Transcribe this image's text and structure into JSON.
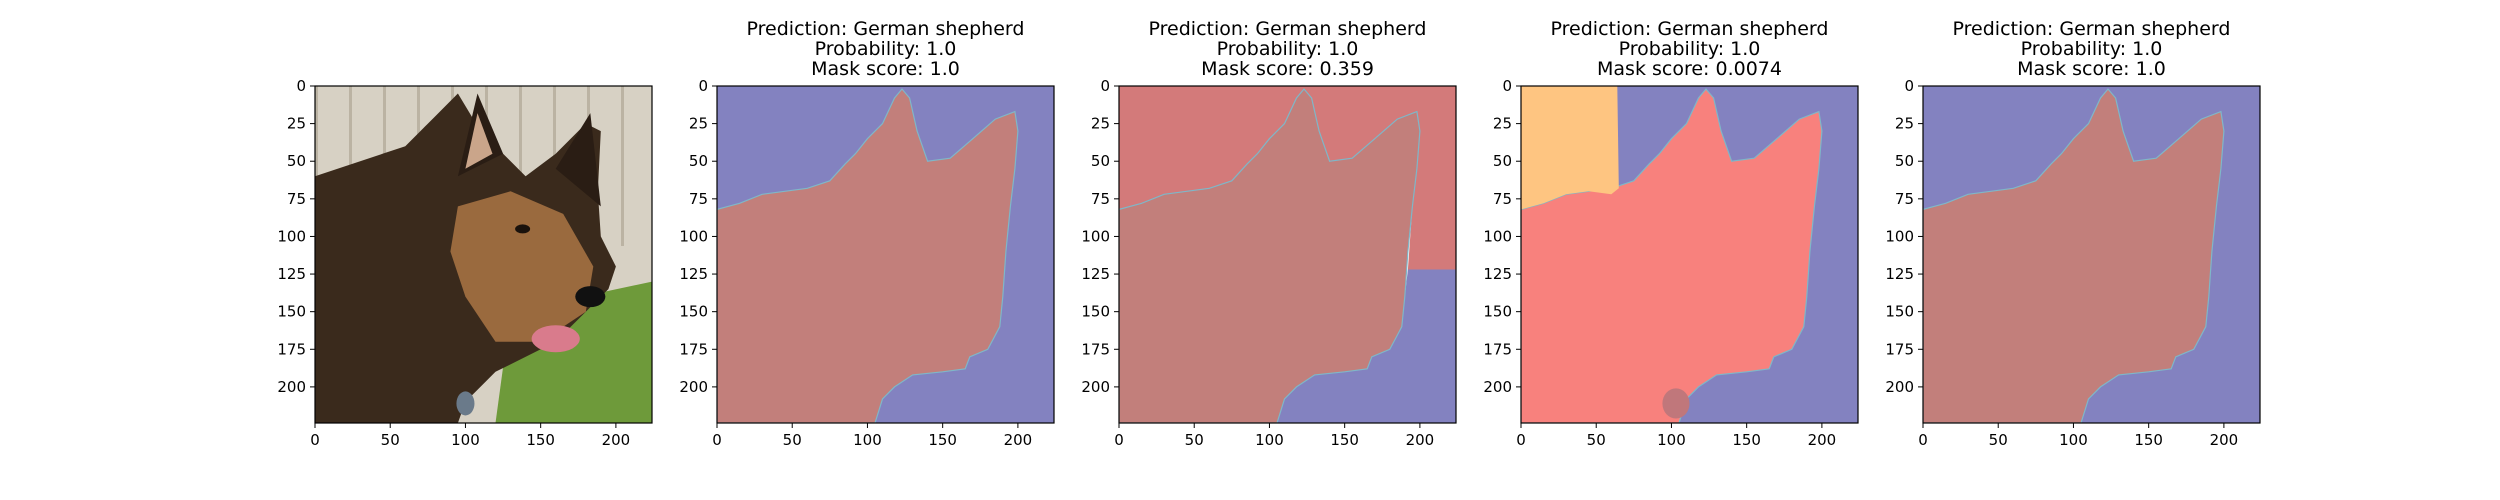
{
  "figure": {
    "panels": [
      {
        "kind": "photo",
        "title_lines": [],
        "description": "German shepherd dog photo"
      },
      {
        "kind": "mask",
        "title_lines": [
          "Prediction: German shepherd",
          "Probability: 1.0",
          "Mask score: 1.0"
        ],
        "colors": {
          "dog": "#c27f7b",
          "background": "#8382c0"
        },
        "variant": "clean"
      },
      {
        "kind": "mask",
        "title_lines": [
          "Prediction: German shepherd",
          "Probability: 1.0",
          "Mask score: 0.359"
        ],
        "colors": {
          "dog": "#c27f7b",
          "background_top": "#d37a7a",
          "background_bottom": "#8382c0"
        },
        "variant": "split-bg"
      },
      {
        "kind": "mask",
        "title_lines": [
          "Prediction: German shepherd",
          "Probability: 1.0",
          "Mask score: 0.0074"
        ],
        "colors": {
          "dog": "#f8817d",
          "background": "#8382c0",
          "patch": "#fec581",
          "blob": "#c0777b"
        },
        "variant": "patch"
      },
      {
        "kind": "mask",
        "title_lines": [
          "Prediction: German shepherd",
          "Probability: 1.0",
          "Mask score: 1.0"
        ],
        "colors": {
          "dog": "#c27f7b",
          "background": "#8382c0"
        },
        "variant": "clean"
      }
    ],
    "axes": {
      "x_ticks": [
        "0",
        "50",
        "100",
        "150",
        "200"
      ],
      "y_ticks": [
        "0",
        "25",
        "50",
        "75",
        "100",
        "125",
        "150",
        "175",
        "200"
      ]
    }
  }
}
